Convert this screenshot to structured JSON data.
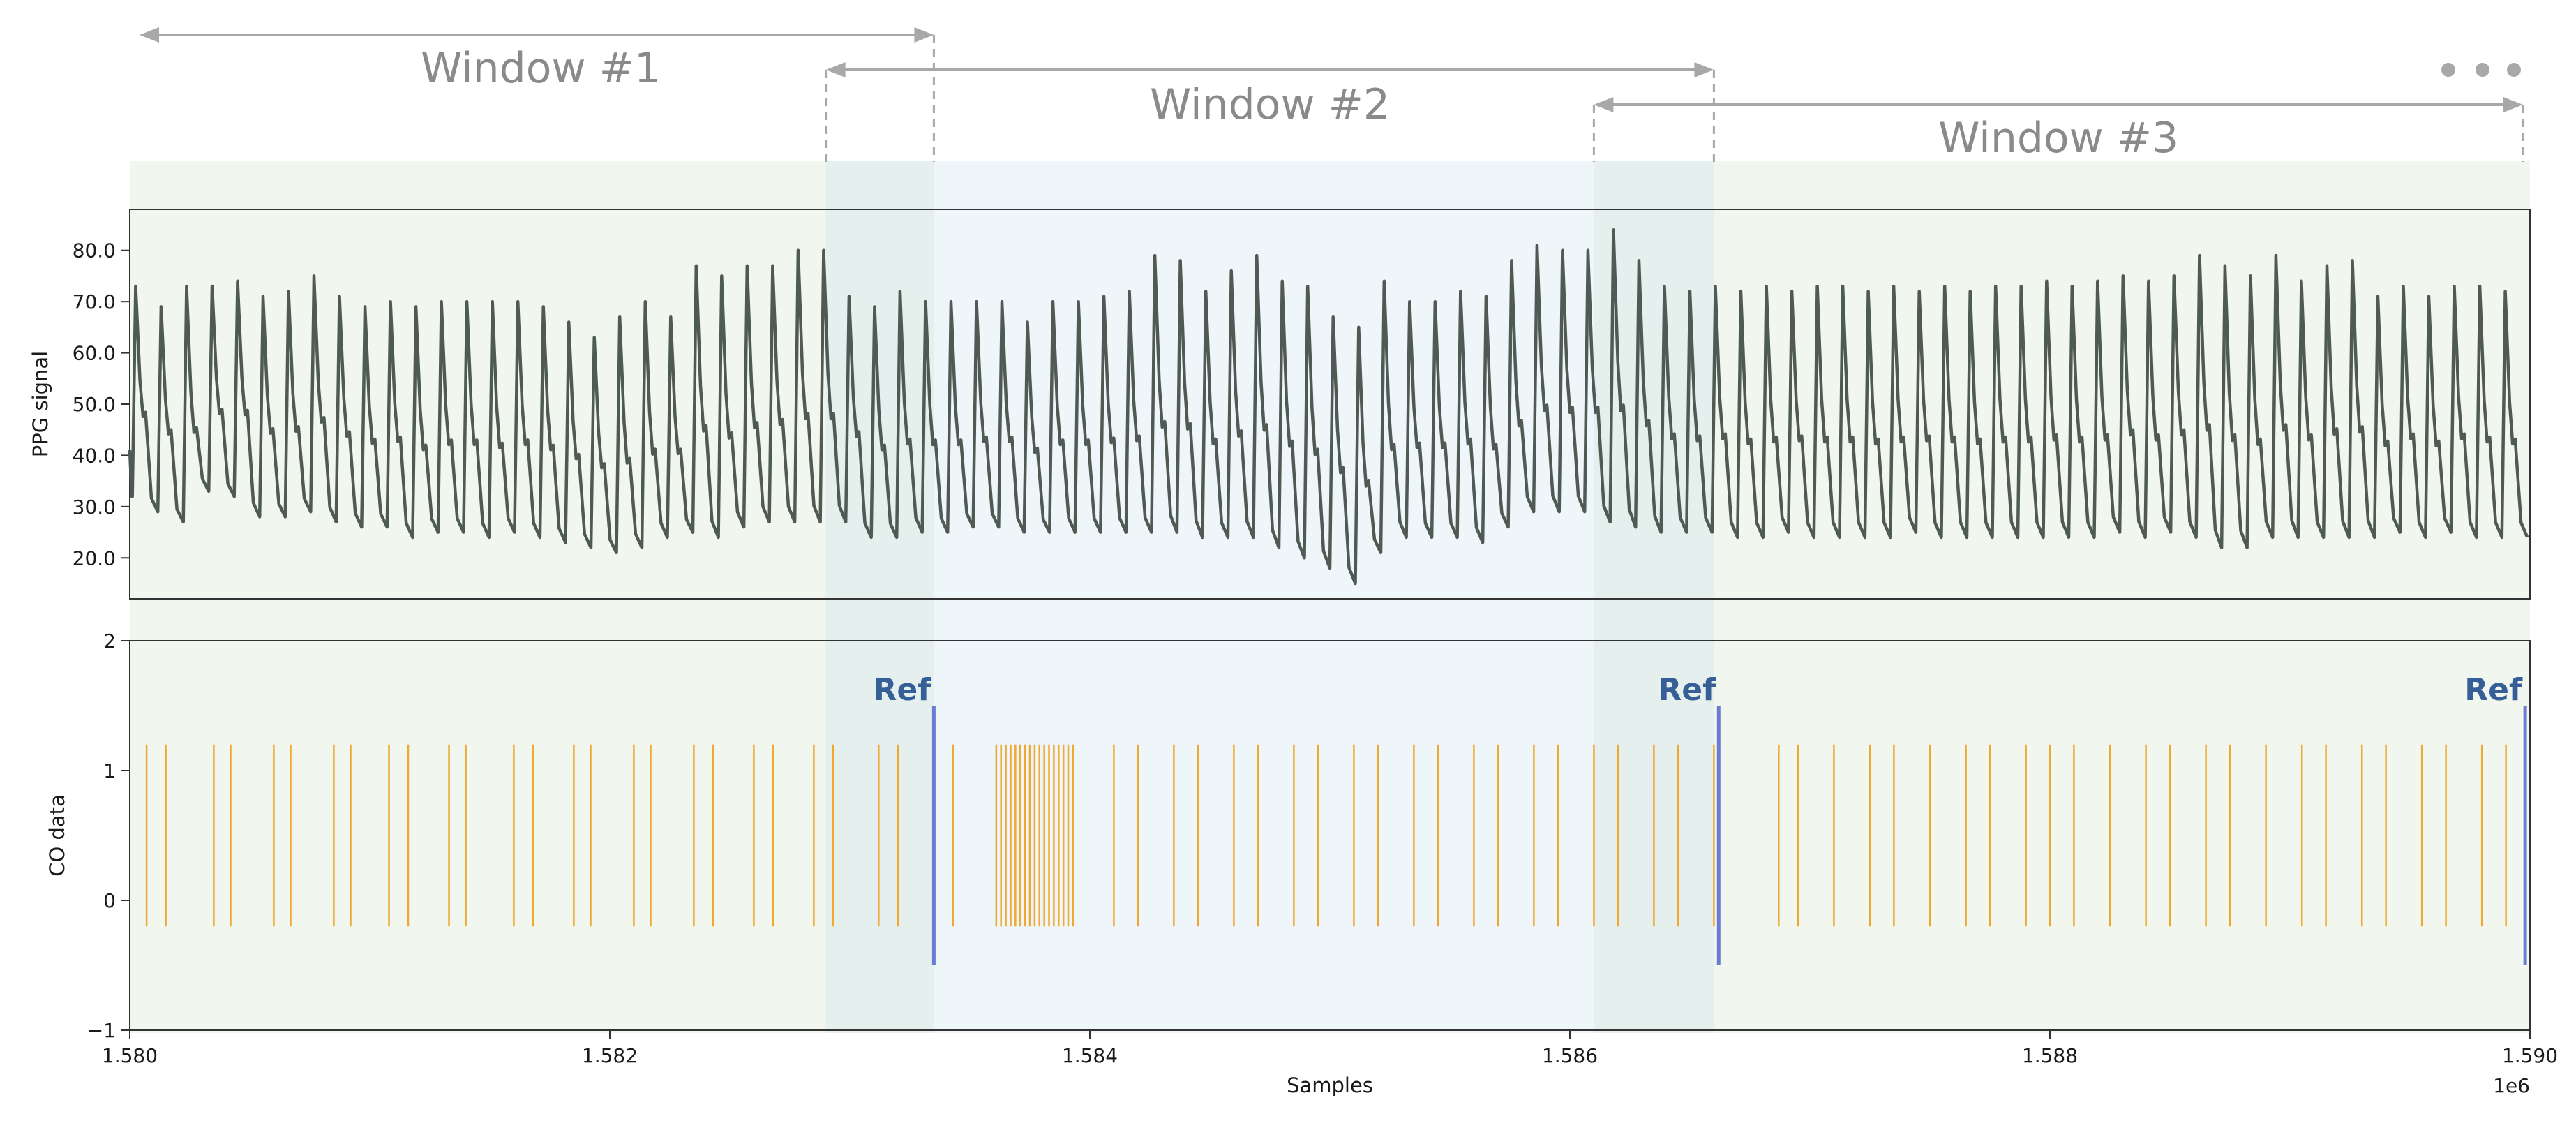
{
  "colors": {
    "background_tint": "#f1f6ee",
    "window2_tint": "#eef6f9",
    "overlap_tint": "#e4efee",
    "ppg_line": "#4f5a54",
    "co_events": "#f0a830",
    "ref_line": "#6a7bd6",
    "ref_text": "#355f96",
    "arrow": "#a8a8a8",
    "window_text": "#8a8a8a"
  },
  "windows": [
    {
      "label": "Window #1",
      "start": 1580000,
      "end": 1583350
    },
    {
      "label": "Window #2",
      "start": 1582900,
      "end": 1586600
    },
    {
      "label": "Window #3",
      "start": 1586100,
      "end": 1590000
    }
  ],
  "ellipsis_icon": "more-dots-icon",
  "chart_data": [
    {
      "type": "line",
      "ylabel": "PPG signal",
      "xlim": [
        1580000,
        1590000
      ],
      "ylim": [
        12,
        88
      ],
      "yticks": [
        "20.0",
        "30.0",
        "40.0",
        "50.0",
        "60.0",
        "70.0",
        "80.0"
      ],
      "ytick_values": [
        20,
        30,
        40,
        50,
        60,
        70,
        80
      ],
      "peaks": [
        73,
        69,
        73,
        73,
        74,
        71,
        72,
        75,
        71,
        69,
        70,
        69,
        70,
        70,
        70,
        70,
        69,
        66,
        63,
        67,
        70,
        67,
        77,
        75,
        77,
        77,
        80,
        80,
        71,
        69,
        72,
        70,
        70,
        70,
        70,
        66,
        70,
        70,
        71,
        72,
        79,
        78,
        72,
        76,
        79,
        74,
        73,
        67,
        65,
        74,
        70,
        70,
        72,
        71,
        78,
        81,
        80,
        80,
        84,
        78,
        73,
        72,
        73,
        72,
        73,
        72,
        73,
        73,
        72,
        73,
        72,
        73,
        72,
        73,
        73,
        74,
        73,
        74,
        75,
        74,
        75,
        79,
        77,
        75,
        79,
        74,
        77,
        78,
        71,
        73,
        71,
        73,
        73,
        72
      ],
      "troughs": [
        32,
        29,
        27,
        33,
        32,
        28,
        28,
        29,
        27,
        26,
        26,
        24,
        25,
        25,
        24,
        25,
        24,
        23,
        22,
        21,
        22,
        24,
        25,
        24,
        26,
        27,
        27,
        27,
        27,
        24,
        24,
        25,
        25,
        26,
        26,
        25,
        25,
        25,
        25,
        25,
        25,
        25,
        24,
        24,
        24,
        22,
        20,
        18,
        15,
        21,
        24,
        24,
        24,
        23,
        26,
        29,
        29,
        29,
        27,
        26,
        25,
        25,
        25,
        24,
        24,
        25,
        24,
        24,
        24,
        24,
        25,
        24,
        24,
        24,
        24,
        24,
        24,
        24,
        25,
        24,
        25,
        24,
        22,
        22,
        24,
        24,
        24,
        24,
        24,
        25,
        24,
        25,
        24,
        24,
        24
      ]
    },
    {
      "type": "event",
      "xlabel": "Samples",
      "ylabel": "CO data",
      "xlim": [
        1580000,
        1590000
      ],
      "ylim": [
        -1,
        2
      ],
      "yticks": [
        "−1",
        "0",
        "1",
        "2"
      ],
      "ytick_values": [
        -1,
        0,
        1,
        2
      ],
      "xticks": [
        "1.580",
        "1.582",
        "1.584",
        "1.586",
        "1.588",
        "1.590"
      ],
      "xtick_values": [
        1580000,
        1582000,
        1584000,
        1586000,
        1588000,
        1590000
      ],
      "offset_text": "1e6",
      "event_range": [
        -0.2,
        1.2
      ],
      "events": [
        1580070,
        1580150,
        1580350,
        1580420,
        1580600,
        1580670,
        1580850,
        1580920,
        1581080,
        1581160,
        1581330,
        1581400,
        1581600,
        1581680,
        1581850,
        1581920,
        1582100,
        1582170,
        1582350,
        1582430,
        1582600,
        1582680,
        1582850,
        1582930,
        1583120,
        1583200,
        1583430,
        1583610,
        1583630,
        1583650,
        1583670,
        1583690,
        1583710,
        1583730,
        1583750,
        1583770,
        1583790,
        1583810,
        1583830,
        1583850,
        1583870,
        1583890,
        1583910,
        1583930,
        1584100,
        1584200,
        1584350,
        1584450,
        1584600,
        1584700,
        1584850,
        1584950,
        1585100,
        1585200,
        1585350,
        1585450,
        1585600,
        1585700,
        1585850,
        1585950,
        1586100,
        1586200,
        1586350,
        1586450,
        1586600,
        1586870,
        1586950,
        1587100,
        1587250,
        1587350,
        1587500,
        1587650,
        1587750,
        1587900,
        1588000,
        1588100,
        1588250,
        1588400,
        1588500,
        1588650,
        1588750,
        1588900,
        1589050,
        1589150,
        1589300,
        1589400,
        1589550,
        1589650,
        1589800,
        1589900
      ],
      "ref_markers": [
        {
          "label": "Ref",
          "x": 1583350
        },
        {
          "label": "Ref",
          "x": 1586620
        },
        {
          "label": "Ref",
          "x": 1589980
        }
      ],
      "ref_range": [
        -0.5,
        1.5
      ]
    }
  ]
}
